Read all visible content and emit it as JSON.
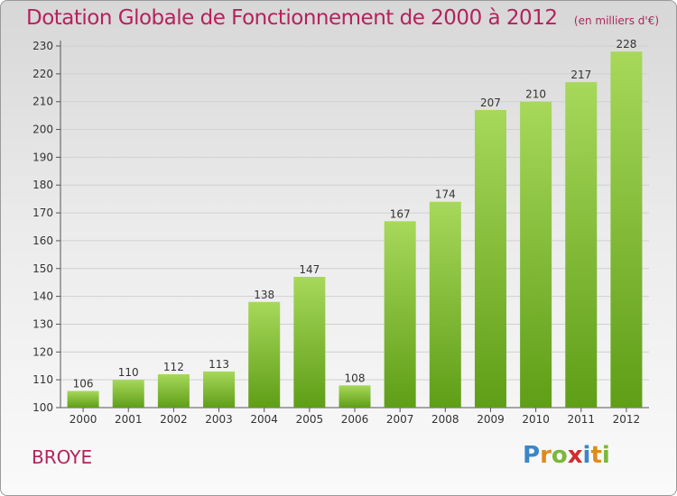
{
  "title": "Dotation Globale de Fonctionnement de 2000 à 2012",
  "unit_note": "(en milliers d'€)",
  "city": "BROYE",
  "logo_text": "Proxiti",
  "colors": {
    "accent": "#b5225c",
    "bar_light": "#a7d85a",
    "bar_dark": "#5f9e17"
  },
  "chart_data": {
    "type": "bar",
    "title": "Dotation Globale de Fonctionnement de 2000 à 2012",
    "subtitle": "(en milliers d'€)",
    "xlabel": "",
    "ylabel": "",
    "categories": [
      "2000",
      "2001",
      "2002",
      "2003",
      "2004",
      "2005",
      "2006",
      "2007",
      "2008",
      "2009",
      "2010",
      "2011",
      "2012"
    ],
    "values": [
      106,
      110,
      112,
      113,
      138,
      147,
      108,
      167,
      174,
      207,
      210,
      217,
      228
    ],
    "ylim": [
      100,
      230
    ],
    "yticks": [
      100,
      110,
      120,
      130,
      140,
      150,
      160,
      170,
      180,
      190,
      200,
      210,
      220,
      230
    ],
    "grid": true,
    "data_labels": true
  }
}
